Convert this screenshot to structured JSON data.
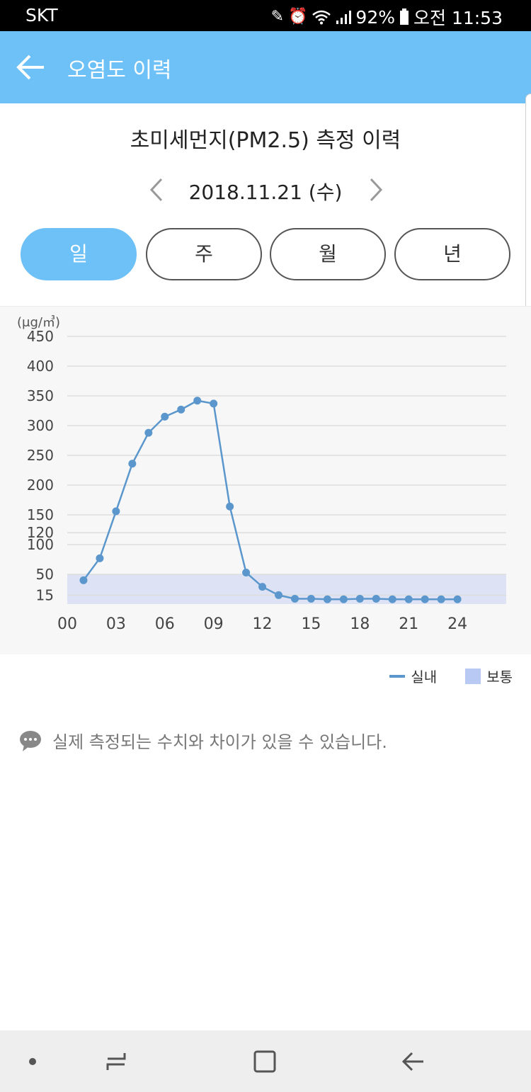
{
  "status_bar": {
    "carrier": "SKT",
    "battery": "92%",
    "time": "오전 11:53",
    "icons": [
      "pen-icon",
      "alarm-icon",
      "wifi-icon",
      "signal-icon",
      "battery-icon"
    ]
  },
  "app_bar": {
    "title": "오염도 이력",
    "back_icon": "back-arrow-icon",
    "color": "#6ec1f7"
  },
  "page": {
    "section_title": "초미세먼지(PM2.5) 측정 이력",
    "date": "2018.11.21 (수)",
    "prev_icon": "chevron-left-icon",
    "next_icon": "chevron-right-icon"
  },
  "period_tabs": [
    {
      "label": "일",
      "active": true
    },
    {
      "label": "주",
      "active": false
    },
    {
      "label": "월",
      "active": false
    },
    {
      "label": "년",
      "active": false
    }
  ],
  "chart_data": {
    "type": "line",
    "unit": "(μg/㎥)",
    "x_ticks": [
      "00",
      "03",
      "06",
      "09",
      "12",
      "15",
      "18",
      "21",
      "24"
    ],
    "xlim": [
      0,
      27
    ],
    "y_ticks": [
      15,
      50,
      100,
      120,
      150,
      200,
      250,
      300,
      350,
      400,
      450
    ],
    "ylim": [
      0,
      450
    ],
    "grid": true,
    "band": {
      "name": "보통",
      "from": 0,
      "to": 50,
      "color": "#dde3f5"
    },
    "series": [
      {
        "name": "실내",
        "color": "#5b97cc",
        "x": [
          1,
          2,
          3,
          4,
          5,
          6,
          7,
          8,
          9,
          10,
          11,
          12,
          13,
          14,
          15,
          16,
          17,
          18,
          19,
          20,
          21,
          22,
          23,
          24
        ],
        "values": [
          40,
          77,
          156,
          236,
          288,
          315,
          327,
          342,
          337,
          164,
          53,
          29,
          15,
          9,
          9,
          8,
          8,
          9,
          9,
          8,
          8,
          8,
          8,
          8
        ]
      }
    ]
  },
  "legend": {
    "line_label": "실내",
    "band_label": "보통"
  },
  "notice": {
    "icon": "speech-bubble-icon",
    "text": "실제 측정되는 수치와 차이가 있을 수 있습니다."
  },
  "nav_bar": {
    "icons": [
      "dot-icon",
      "recent-apps-icon",
      "home-icon",
      "back-icon"
    ]
  }
}
